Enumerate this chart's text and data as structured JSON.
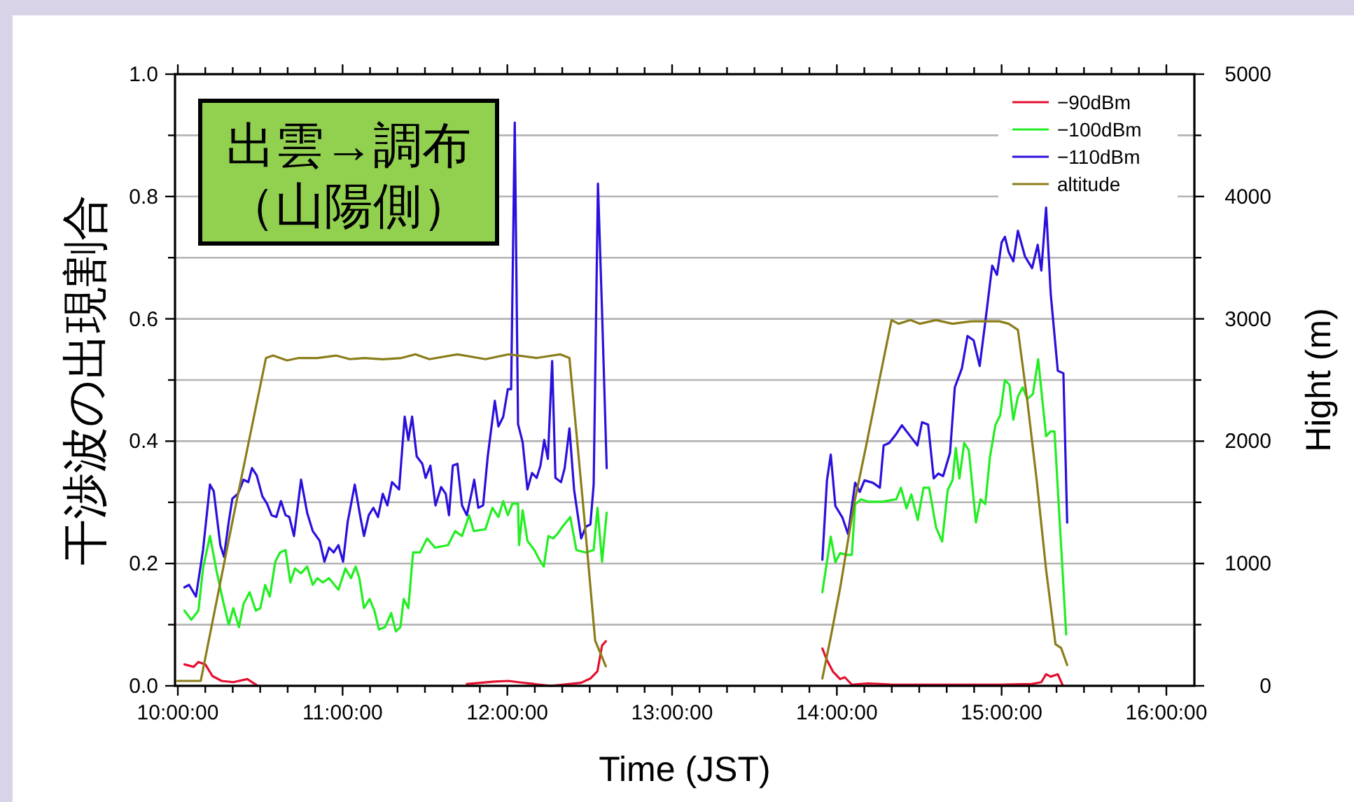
{
  "chart_data": {
    "type": "line",
    "xlabel": "Time (JST)",
    "ylabel": "干渉波の出現割合",
    "y2label": "Hight (m)",
    "annotations": [
      "出雲→調布",
      "（山陽側）"
    ],
    "xlim": [
      9.983,
      16.17
    ],
    "ylim": [
      0,
      1
    ],
    "y2lim": [
      0,
      5000
    ],
    "xticks": [
      {
        "value": 10,
        "label": "10:00:00"
      },
      {
        "value": 10.1667,
        "label": null
      },
      {
        "value": 10.3333,
        "label": null
      },
      {
        "value": 10.5,
        "label": null
      },
      {
        "value": 10.6667,
        "label": null
      },
      {
        "value": 10.8333,
        "label": null
      },
      {
        "value": 11,
        "label": "11:00:00"
      },
      {
        "value": 11.1667,
        "label": null
      },
      {
        "value": 11.3333,
        "label": null
      },
      {
        "value": 11.5,
        "label": null
      },
      {
        "value": 11.6667,
        "label": null
      },
      {
        "value": 11.8333,
        "label": null
      },
      {
        "value": 12,
        "label": "12:00:00"
      },
      {
        "value": 12.1667,
        "label": null
      },
      {
        "value": 12.3333,
        "label": null
      },
      {
        "value": 12.5,
        "label": null
      },
      {
        "value": 12.6667,
        "label": null
      },
      {
        "value": 12.8333,
        "label": null
      },
      {
        "value": 13,
        "label": "13:00:00"
      },
      {
        "value": 13.1667,
        "label": null
      },
      {
        "value": 13.3333,
        "label": null
      },
      {
        "value": 13.5,
        "label": null
      },
      {
        "value": 13.6667,
        "label": null
      },
      {
        "value": 13.8333,
        "label": null
      },
      {
        "value": 14,
        "label": "14:00:00"
      },
      {
        "value": 14.1667,
        "label": null
      },
      {
        "value": 14.3333,
        "label": null
      },
      {
        "value": 14.5,
        "label": null
      },
      {
        "value": 14.6667,
        "label": null
      },
      {
        "value": 14.8333,
        "label": null
      },
      {
        "value": 15,
        "label": "15:00:00"
      },
      {
        "value": 15.1667,
        "label": null
      },
      {
        "value": 15.3333,
        "label": null
      },
      {
        "value": 15.5,
        "label": null
      },
      {
        "value": 15.6667,
        "label": null
      },
      {
        "value": 15.8333,
        "label": null
      },
      {
        "value": 16,
        "label": "16:00:00"
      }
    ],
    "yticks": [
      {
        "value": 0,
        "label": "0.0"
      },
      {
        "value": 0.1,
        "label": null
      },
      {
        "value": 0.2,
        "label": "0.2"
      },
      {
        "value": 0.3,
        "label": null
      },
      {
        "value": 0.4,
        "label": "0.4"
      },
      {
        "value": 0.5,
        "label": null
      },
      {
        "value": 0.6,
        "label": "0.6"
      },
      {
        "value": 0.7,
        "label": null
      },
      {
        "value": 0.8,
        "label": "0.8"
      },
      {
        "value": 0.9,
        "label": null
      },
      {
        "value": 1,
        "label": "1.0"
      }
    ],
    "y2ticks": [
      0,
      {
        "value": 500,
        "label": null
      },
      1000,
      {
        "value": 1500,
        "label": null
      },
      2000,
      {
        "value": 2500,
        "label": null
      },
      3000,
      {
        "value": 3500,
        "label": null
      },
      4000,
      {
        "value": 4500,
        "label": null
      },
      5000
    ],
    "grid": "y",
    "legend": "top right",
    "series": [
      {
        "name": "−90dBm",
        "color": "#e3102e",
        "x": [
          10.04,
          10.096,
          10.125,
          10.167,
          10.21,
          10.266,
          10.337,
          10.422,
          10.479,
          10.62,
          11.584,
          11.754,
          11.924,
          12.008,
          12.065,
          12.263,
          12.448,
          12.504,
          12.547,
          12.575,
          12.598,
          13.25,
          13.912,
          13.94,
          13.977,
          14.02,
          14.048,
          14.091,
          14.19,
          14.332,
          14.986,
          15.185,
          15.241,
          15.27,
          15.298,
          15.341,
          15.369
        ],
        "values": [
          0.035,
          0.031,
          0.039,
          0.035,
          0.016,
          0.008,
          0.006,
          0.011,
          0.001,
          null,
          null,
          0.003,
          0.007,
          0.008,
          0.006,
          0,
          0.005,
          0.012,
          0.024,
          0.066,
          0.073,
          null,
          0.061,
          0.042,
          0.023,
          0.011,
          0.014,
          0.002,
          0.004,
          0.002,
          0.002,
          0.003,
          0.006,
          0.019,
          0.015,
          0.019,
          0.002
        ]
      },
      {
        "name": "−100dBm",
        "color": "#22ee22",
        "x": [
          10.04,
          10.082,
          10.125,
          10.153,
          10.195,
          10.238,
          10.275,
          10.309,
          10.337,
          10.371,
          10.399,
          10.436,
          10.473,
          10.501,
          10.53,
          10.558,
          10.592,
          10.62,
          10.654,
          10.683,
          10.711,
          10.748,
          10.785,
          10.819,
          10.847,
          10.881,
          10.918,
          10.975,
          11.017,
          11.051,
          11.079,
          11.102,
          11.13,
          11.164,
          11.193,
          11.221,
          11.258,
          11.295,
          11.323,
          11.351,
          11.371,
          11.399,
          11.428,
          11.47,
          11.513,
          11.561,
          11.64,
          11.683,
          11.725,
          11.768,
          11.796,
          11.867,
          11.909,
          11.946,
          11.975,
          12.003,
          12.031,
          12.065,
          12.071,
          12.093,
          12.122,
          12.164,
          12.193,
          12.221,
          12.249,
          12.278,
          12.306,
          12.334,
          12.382,
          12.419,
          12.476,
          12.524,
          12.547,
          12.575,
          12.603,
          13.25,
          13.912,
          13.963,
          13.991,
          14.02,
          14.062,
          14.091,
          14.111,
          14.148,
          14.19,
          14.276,
          14.361,
          14.389,
          14.423,
          14.452,
          14.491,
          14.526,
          14.56,
          14.602,
          14.639,
          14.673,
          14.702,
          14.722,
          14.744,
          14.773,
          14.801,
          14.844,
          14.872,
          14.901,
          14.929,
          14.963,
          14.991,
          15.02,
          15.048,
          15.071,
          15.099,
          15.128,
          15.156,
          15.19,
          15.222,
          15.27,
          15.298,
          15.321,
          15.392
        ],
        "values": [
          0.123,
          0.108,
          0.123,
          0.192,
          0.245,
          0.184,
          0.138,
          0.1,
          0.127,
          0.096,
          0.134,
          0.153,
          0.123,
          0.127,
          0.165,
          0.146,
          0.203,
          0.218,
          0.222,
          0.169,
          0.192,
          0.184,
          0.195,
          0.165,
          0.176,
          0.169,
          0.176,
          0.157,
          0.192,
          0.176,
          0.195,
          0.176,
          0.127,
          0.142,
          0.123,
          0.092,
          0.096,
          0.119,
          0.089,
          0.096,
          0.142,
          0.127,
          0.218,
          0.218,
          0.241,
          0.226,
          0.23,
          0.253,
          0.245,
          0.279,
          0.253,
          0.256,
          0.291,
          0.276,
          0.302,
          0.279,
          0.298,
          0.298,
          0.23,
          0.287,
          0.237,
          0.222,
          0.207,
          0.195,
          0.245,
          0.241,
          0.249,
          0.26,
          0.276,
          0.222,
          0.218,
          0.222,
          0.291,
          0.203,
          0.283,
          null,
          0.153,
          0.244,
          0.202,
          0.217,
          0.214,
          0.214,
          0.297,
          0.305,
          0.301,
          0.301,
          0.305,
          0.324,
          0.29,
          0.313,
          0.271,
          0.324,
          0.324,
          0.259,
          0.236,
          0.32,
          0.336,
          0.389,
          0.339,
          0.397,
          0.385,
          0.267,
          0.305,
          0.297,
          0.374,
          0.427,
          0.442,
          0.5,
          0.492,
          0.435,
          0.473,
          0.488,
          0.469,
          0.477,
          0.534,
          0.408,
          0.416,
          0.416,
          0.084
        ]
      },
      {
        "name": "−110dBm",
        "color": "#2a10dd",
        "x": [
          10.04,
          10.068,
          10.11,
          10.153,
          10.195,
          10.218,
          10.258,
          10.28,
          10.309,
          10.331,
          10.365,
          10.399,
          10.428,
          10.45,
          10.479,
          10.513,
          10.541,
          10.569,
          10.598,
          10.626,
          10.654,
          10.677,
          10.705,
          10.748,
          10.785,
          10.819,
          10.861,
          10.89,
          10.918,
          10.946,
          10.975,
          11.003,
          11.031,
          11.074,
          11.108,
          11.13,
          11.159,
          11.187,
          11.215,
          11.244,
          11.272,
          11.3,
          11.343,
          11.377,
          11.399,
          11.422,
          11.45,
          11.484,
          11.504,
          11.533,
          11.564,
          11.598,
          11.626,
          11.646,
          11.669,
          11.697,
          11.725,
          11.754,
          11.782,
          11.799,
          11.824,
          11.853,
          11.881,
          11.924,
          11.946,
          11.975,
          12.003,
          12.023,
          12.045,
          12.065,
          12.093,
          12.122,
          12.15,
          12.178,
          12.201,
          12.224,
          12.246,
          12.272,
          12.292,
          12.326,
          12.348,
          12.377,
          12.405,
          12.448,
          12.476,
          12.504,
          12.524,
          12.55,
          12.575,
          12.603,
          13.25,
          13.912,
          13.94,
          13.963,
          13.991,
          14.034,
          14.068,
          14.111,
          14.139,
          14.168,
          14.219,
          14.261,
          14.284,
          14.318,
          14.361,
          14.395,
          14.446,
          14.489,
          14.517,
          14.554,
          14.588,
          14.616,
          14.645,
          14.687,
          14.716,
          14.759,
          14.793,
          14.83,
          14.867,
          14.901,
          14.943,
          14.972,
          15.0,
          15.02,
          15.043,
          15.071,
          15.099,
          15.142,
          15.185,
          15.219,
          15.241,
          15.27,
          15.298,
          15.341,
          15.375,
          15.398
        ],
        "values": [
          0.161,
          0.165,
          0.146,
          0.222,
          0.329,
          0.318,
          0.23,
          0.211,
          0.268,
          0.306,
          0.314,
          0.337,
          0.333,
          0.356,
          0.344,
          0.31,
          0.298,
          0.279,
          0.276,
          0.302,
          0.279,
          0.276,
          0.245,
          0.337,
          0.283,
          0.253,
          0.237,
          0.203,
          0.226,
          0.218,
          0.23,
          0.203,
          0.268,
          0.329,
          0.276,
          0.245,
          0.279,
          0.291,
          0.276,
          0.314,
          0.295,
          0.333,
          0.321,
          0.44,
          0.402,
          0.44,
          0.375,
          0.363,
          0.34,
          0.36,
          0.295,
          0.325,
          0.314,
          0.279,
          0.36,
          0.363,
          0.295,
          0.279,
          0.314,
          0.337,
          0.291,
          0.295,
          0.375,
          0.466,
          0.424,
          0.44,
          0.485,
          0.485,
          0.921,
          0.428,
          0.398,
          0.321,
          0.348,
          0.34,
          0.36,
          0.402,
          0.371,
          0.531,
          0.34,
          0.333,
          0.356,
          0.421,
          0.321,
          0.241,
          0.26,
          0.264,
          0.329,
          0.821,
          0.611,
          0.356,
          null,
          0.206,
          0.336,
          0.378,
          0.294,
          0.275,
          0.248,
          0.332,
          0.317,
          0.336,
          0.332,
          0.324,
          0.393,
          0.397,
          0.412,
          0.426,
          0.408,
          0.393,
          0.431,
          0.427,
          0.339,
          0.347,
          0.343,
          0.381,
          0.488,
          0.519,
          0.572,
          0.565,
          0.523,
          0.595,
          0.687,
          0.672,
          0.725,
          0.734,
          0.709,
          0.694,
          0.744,
          0.702,
          0.683,
          0.721,
          0.679,
          0.782,
          0.641,
          0.515,
          0.511,
          0.267
        ]
      },
      {
        "name": "altitude",
        "color": "#8b7d1a",
        "axis": "y2",
        "x": [
          9.997,
          10.139,
          10.337,
          10.535,
          10.578,
          10.663,
          10.734,
          10.847,
          10.96,
          11.045,
          11.13,
          11.244,
          11.357,
          11.442,
          11.527,
          11.697,
          11.867,
          12.008,
          12.178,
          12.32,
          12.377,
          12.462,
          12.533,
          12.598,
          13.25,
          13.912,
          13.963,
          14.02,
          14.105,
          14.176,
          14.261,
          14.332,
          14.375,
          14.446,
          14.503,
          14.602,
          14.702,
          14.815,
          14.901,
          14.986,
          15.043,
          15.099,
          15.156,
          15.213,
          15.27,
          15.327,
          15.361,
          15.398
        ],
        "values": [
          40,
          40,
          1380,
          2680,
          2700,
          2660,
          2680,
          2680,
          2700,
          2670,
          2680,
          2670,
          2680,
          2710,
          2670,
          2710,
          2670,
          2710,
          2680,
          2710,
          2680,
          1450,
          370,
          160,
          null,
          60,
          400,
          800,
          1490,
          1950,
          2520,
          2990,
          2960,
          2990,
          2960,
          2990,
          2960,
          2980,
          2980,
          2980,
          2960,
          2910,
          2330,
          1680,
          950,
          340,
          310,
          170
        ]
      }
    ]
  }
}
